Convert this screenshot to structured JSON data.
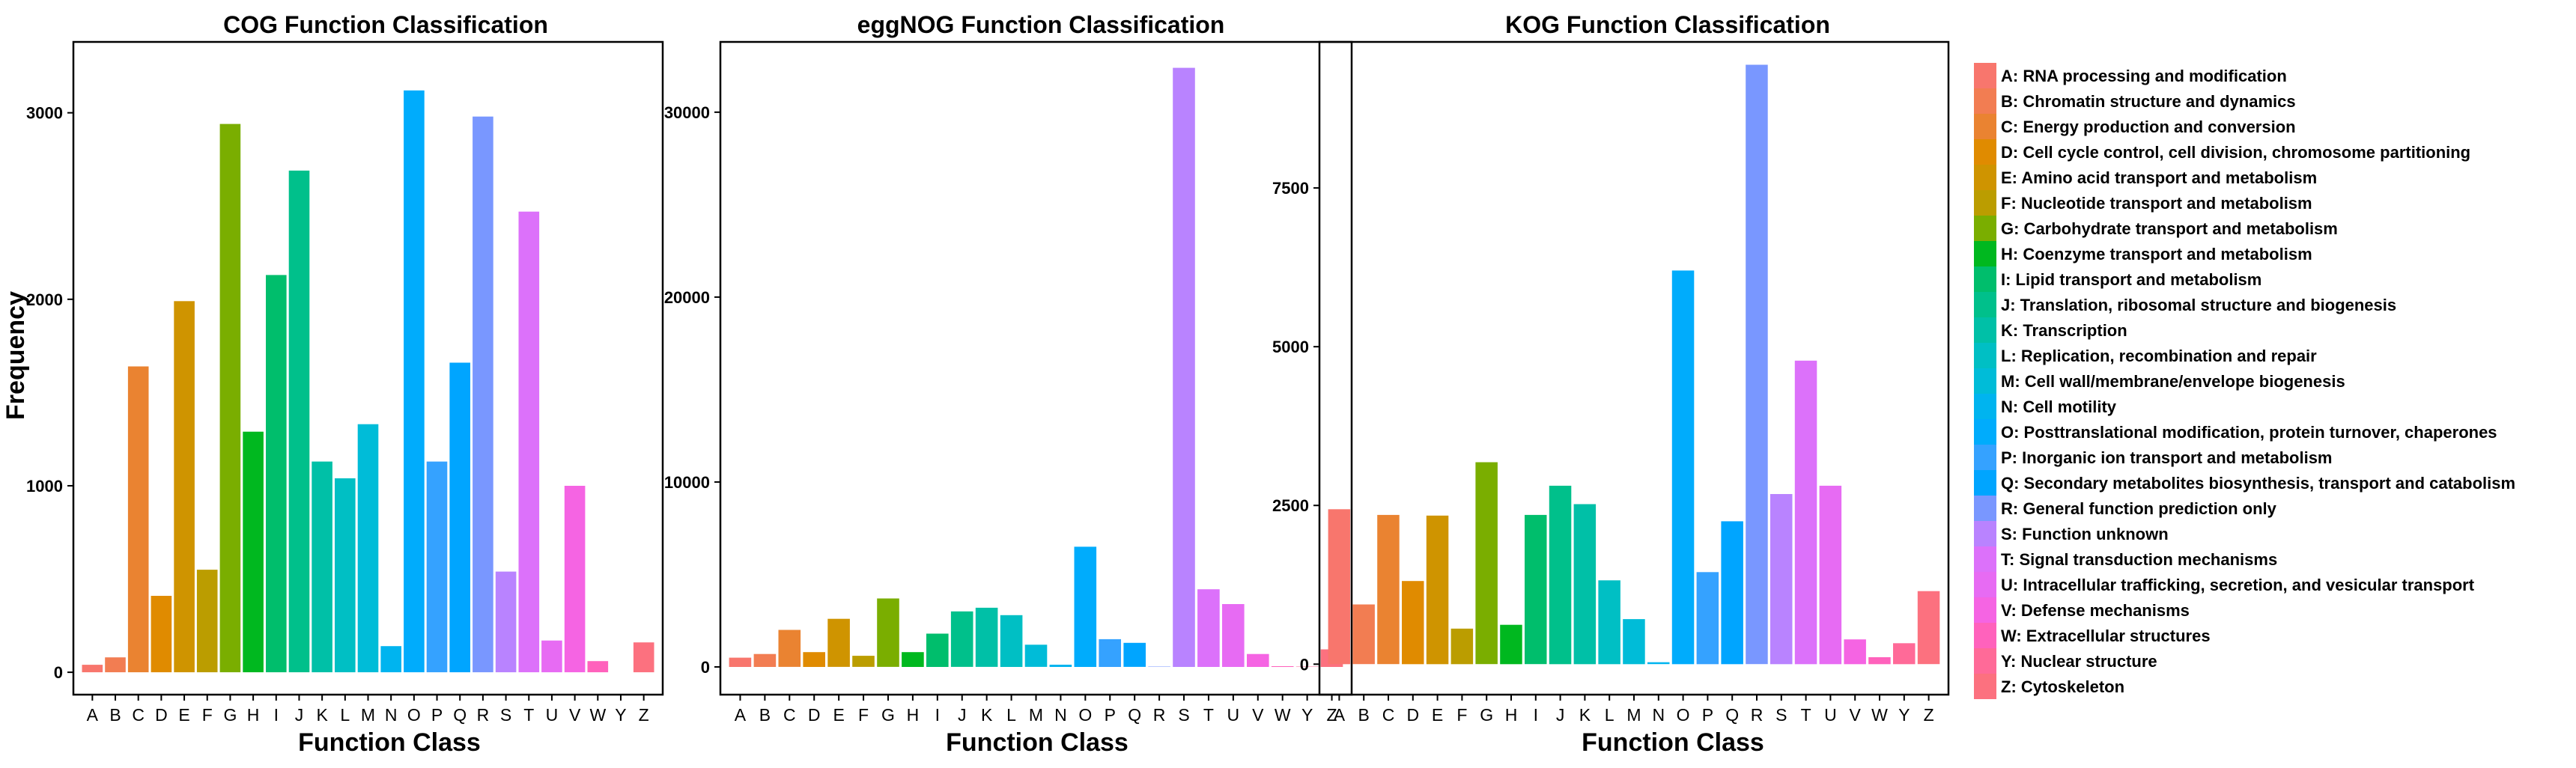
{
  "legend": [
    {
      "letter": "A",
      "label": "A: RNA processing and modification",
      "color": "#F8766D"
    },
    {
      "letter": "B",
      "label": "B: Chromatin structure and dynamics",
      "color": "#F27D52"
    },
    {
      "letter": "C",
      "label": "C: Energy production and conversion",
      "color": "#EA8331"
    },
    {
      "letter": "D",
      "label": "D: Cell cycle control, cell division, chromosome partitioning",
      "color": "#E08B00"
    },
    {
      "letter": "E",
      "label": "E: Amino acid transport and metabolism",
      "color": "#CF9400"
    },
    {
      "letter": "F",
      "label": "F: Nucleotide transport and metabolism",
      "color": "#BB9D00"
    },
    {
      "letter": "G",
      "label": "G: Carbohydrate transport and metabolism",
      "color": "#7AAE00"
    },
    {
      "letter": "H",
      "label": "H: Coenzyme transport and metabolism",
      "color": "#00B81F"
    },
    {
      "letter": "I",
      "label": "I: Lipid transport and metabolism",
      "color": "#00BE6C"
    },
    {
      "letter": "J",
      "label": "J: Translation, ribosomal structure and biogenesis",
      "color": "#00C08B"
    },
    {
      "letter": "K",
      "label": "K: Transcription",
      "color": "#00C0A7"
    },
    {
      "letter": "L",
      "label": "L: Replication, recombination and repair",
      "color": "#00BFC4"
    },
    {
      "letter": "M",
      "label": "M: Cell wall/membrane/envelope biogenesis",
      "color": "#00BCD8"
    },
    {
      "letter": "N",
      "label": "N: Cell motility",
      "color": "#00B4EF"
    },
    {
      "letter": "O",
      "label": "O: Posttranslational modification, protein turnover, chaperones",
      "color": "#00ACFC"
    },
    {
      "letter": "P",
      "label": "P: Inorganic ion transport and metabolism",
      "color": "#35A2FF"
    },
    {
      "letter": "Q",
      "label": "Q: Secondary metabolites biosynthesis, transport and catabolism",
      "color": "#00A5FF"
    },
    {
      "letter": "R",
      "label": "R: General function prediction only",
      "color": "#7997FF"
    },
    {
      "letter": "S",
      "label": "S: Function unknown",
      "color": "#B983FF"
    },
    {
      "letter": "T",
      "label": "T: Signal transduction mechanisms",
      "color": "#DC71FA"
    },
    {
      "letter": "U",
      "label": "U: Intracellular trafficking, secretion, and vesicular transport",
      "color": "#E76BF3"
    },
    {
      "letter": "V",
      "label": "V: Defense mechanisms",
      "color": "#F564E3"
    },
    {
      "letter": "W",
      "label": "W: Extracellular structures",
      "color": "#FF62BC"
    },
    {
      "letter": "Y",
      "label": "Y: Nuclear structure",
      "color": "#FF6A98"
    },
    {
      "letter": "Z",
      "label": "Z: Cytoskeleton",
      "color": "#FC717F"
    }
  ],
  "chart_data": [
    {
      "type": "bar",
      "title": "COG Function Classification",
      "xlabel": "Function Class",
      "ylabel": "Frequency",
      "ylim": [
        -120,
        3380
      ],
      "yticks": [
        0,
        1000,
        2000,
        3000
      ],
      "ytick_labels": [
        "0",
        "1000",
        "2000",
        "3000"
      ],
      "categories": [
        "A",
        "B",
        "C",
        "D",
        "E",
        "F",
        "G",
        "H",
        "I",
        "J",
        "K",
        "L",
        "M",
        "N",
        "O",
        "P",
        "Q",
        "R",
        "S",
        "T",
        "U",
        "V",
        "W",
        "Y",
        "Z"
      ],
      "values": [
        40,
        80,
        1640,
        410,
        1990,
        550,
        2940,
        1290,
        2130,
        2690,
        1130,
        1040,
        1330,
        140,
        3120,
        1130,
        1660,
        2980,
        540,
        2470,
        170,
        1000,
        60,
        0,
        160
      ]
    },
    {
      "type": "bar",
      "title": "eggNOG Function Classification",
      "xlabel": "Function Class",
      "ylabel": "",
      "ylim": [
        -1500,
        33800
      ],
      "yticks": [
        0,
        10000,
        20000,
        30000
      ],
      "ytick_labels": [
        "0",
        "10000",
        "20000",
        "30000"
      ],
      "categories": [
        "A",
        "B",
        "C",
        "D",
        "E",
        "F",
        "G",
        "H",
        "I",
        "J",
        "K",
        "L",
        "M",
        "N",
        "O",
        "P",
        "Q",
        "R",
        "S",
        "T",
        "U",
        "V",
        "W",
        "Y",
        "Z"
      ],
      "values": [
        500,
        700,
        2000,
        800,
        2600,
        600,
        3700,
        800,
        1800,
        3000,
        3200,
        2800,
        1200,
        120,
        6500,
        1500,
        1300,
        20,
        32400,
        4200,
        3400,
        700,
        40,
        20,
        950
      ]
    },
    {
      "type": "bar",
      "title": "KOG Function Classification",
      "xlabel": "Function Class",
      "ylabel": "",
      "ylim": [
        -480,
        9800
      ],
      "yticks": [
        0,
        2500,
        5000,
        7500
      ],
      "ytick_labels": [
        "0",
        "2500",
        "5000",
        "7500"
      ],
      "categories": [
        "A",
        "B",
        "C",
        "D",
        "E",
        "F",
        "G",
        "H",
        "I",
        "J",
        "K",
        "L",
        "M",
        "N",
        "O",
        "P",
        "Q",
        "R",
        "S",
        "T",
        "U",
        "V",
        "W",
        "Y",
        "Z"
      ],
      "values": [
        2440,
        940,
        2350,
        1310,
        2340,
        560,
        3180,
        620,
        2350,
        2810,
        2520,
        1320,
        710,
        30,
        6200,
        1450,
        2250,
        9440,
        2680,
        4780,
        2810,
        390,
        110,
        330,
        1150
      ]
    }
  ]
}
